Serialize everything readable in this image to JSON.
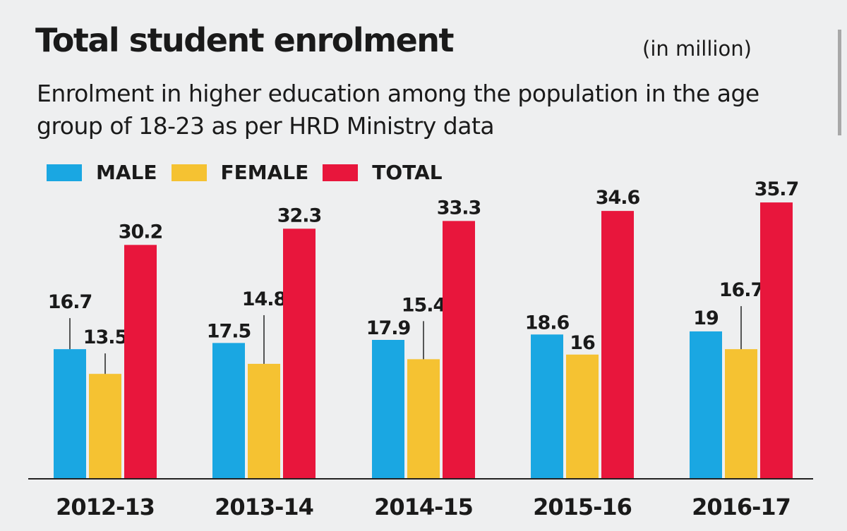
{
  "chart_data": {
    "type": "bar",
    "title": "Total student enrolment",
    "unit": "(in million)",
    "subtitle": "Enrolment in higher education among the population in the age group of 18-23 as per HRD Ministry data",
    "categories": [
      "2012-13",
      "2013-14",
      "2014-15",
      "2015-16",
      "2016-17"
    ],
    "series": [
      {
        "name": "MALE",
        "color": "#1aa7e2",
        "values": [
          16.7,
          17.5,
          17.9,
          18.6,
          19
        ]
      },
      {
        "name": "FEMALE",
        "color": "#f5c232",
        "values": [
          13.5,
          14.8,
          15.4,
          16,
          16.7
        ]
      },
      {
        "name": "TOTAL",
        "color": "#e8163c",
        "values": [
          30.2,
          32.3,
          33.3,
          34.6,
          35.7
        ]
      }
    ],
    "value_labels": [
      [
        "16.7",
        "17.5",
        "17.9",
        "18.6",
        "19"
      ],
      [
        "13.5",
        "14.8",
        "15.4",
        "16",
        "16.7"
      ],
      [
        "30.2",
        "32.3",
        "33.3",
        "34.6",
        "35.7"
      ]
    ],
    "ylim": [
      0,
      36
    ],
    "grid": false,
    "legend": "top-left"
  }
}
